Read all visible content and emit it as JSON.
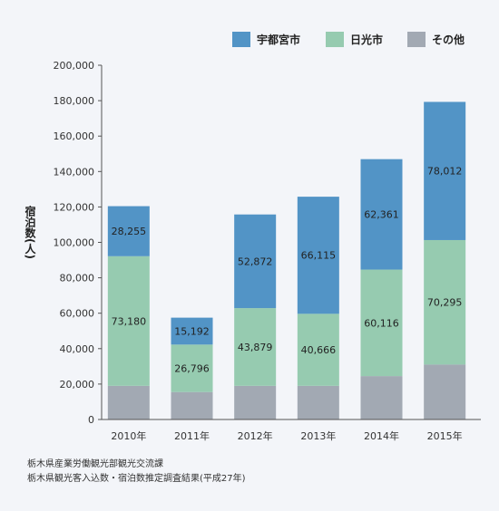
{
  "chart_data": {
    "type": "bar",
    "stacked": true,
    "categories": [
      "2010年",
      "2011年",
      "2012年",
      "2013年",
      "2014年",
      "2015年"
    ],
    "series": [
      {
        "name": "その他",
        "color": "#a2a9b3",
        "values": [
          19000,
          15500,
          19000,
          19000,
          24500,
          31000
        ],
        "labeled": false
      },
      {
        "name": "日光市",
        "color": "#96cbb0",
        "values": [
          73180,
          26796,
          43879,
          40666,
          60116,
          70295
        ],
        "labeled": true
      },
      {
        "name": "宇都宮市",
        "color": "#5294c6",
        "values": [
          28255,
          15192,
          52872,
          66115,
          62361,
          78012
        ],
        "labeled": true
      }
    ],
    "segment_labels": {
      "日光市": [
        "73,180",
        "26,796",
        "43,879",
        "40,666",
        "60,116",
        "70,295"
      ],
      "宇都宮市": [
        "28,255",
        "15,192",
        "52,872",
        "66,115",
        "62,361",
        "78,012"
      ]
    },
    "legend_order": [
      "宇都宮市",
      "日光市",
      "その他"
    ],
    "legend_position": "top-right",
    "ylabel": "宿泊数(人)",
    "xlabel": "",
    "ylim": [
      0,
      200000
    ],
    "yticks": [
      "0",
      "20,000",
      "40,000",
      "60,000",
      "80,000",
      "100,000",
      "120,000",
      "140,000",
      "160,000",
      "180,000",
      "200,000"
    ],
    "grid": false
  },
  "notes": [
    "栃木県産業労働観光部観光交流課",
    "栃木県観光客入込数・宿泊数推定調査結果(平成27年)"
  ]
}
